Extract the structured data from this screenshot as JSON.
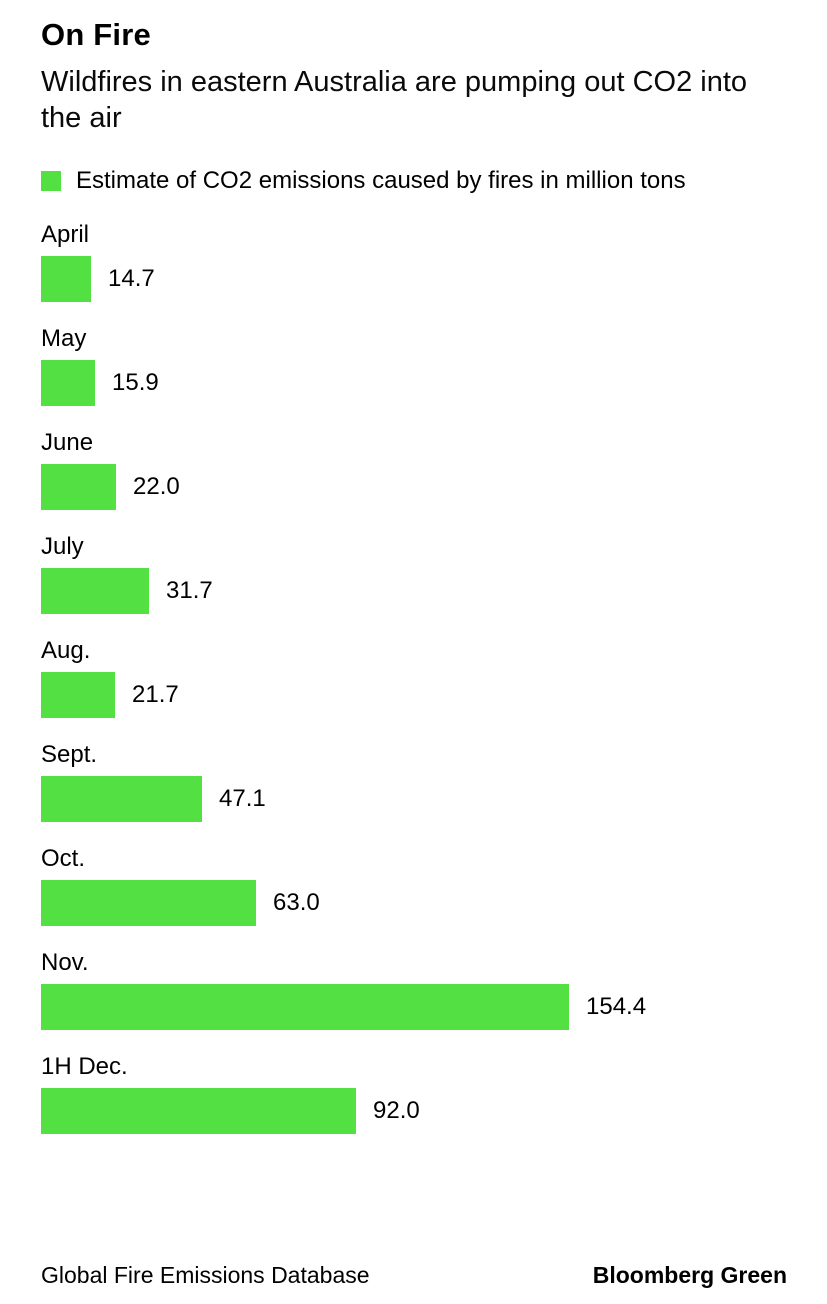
{
  "header": {
    "title": "On Fire",
    "subtitle": "Wildfires in eastern Australia are pumping out CO2 into the air"
  },
  "legend": {
    "label": "Estimate of CO2 emissions caused by fires in million tons"
  },
  "chart_data": {
    "type": "bar",
    "orientation": "horizontal",
    "title": "On Fire",
    "subtitle": "Wildfires in eastern Australia are pumping out CO2 into the air",
    "legend_label": "Estimate of CO2 emissions caused by fires in million tons",
    "legend_position": "top-left",
    "categories": [
      "April",
      "May",
      "June",
      "July",
      "Aug.",
      "Sept.",
      "Oct.",
      "Nov.",
      "1H Dec."
    ],
    "values": [
      14.7,
      15.9,
      22.0,
      31.7,
      21.7,
      47.1,
      63.0,
      154.4,
      92.0
    ],
    "value_labels": [
      "14.7",
      "15.9",
      "22.0",
      "31.7",
      "21.7",
      "47.1",
      "63.0",
      "154.4",
      "92.0"
    ],
    "xlim": [
      0,
      160
    ],
    "grid": false,
    "bar_color": "#52e043"
  },
  "footer": {
    "source": "Global Fire Emissions Database",
    "brand": "Bloomberg Green"
  },
  "colors": {
    "accent": "#52e043",
    "text": "#000000",
    "background": "#ffffff"
  }
}
